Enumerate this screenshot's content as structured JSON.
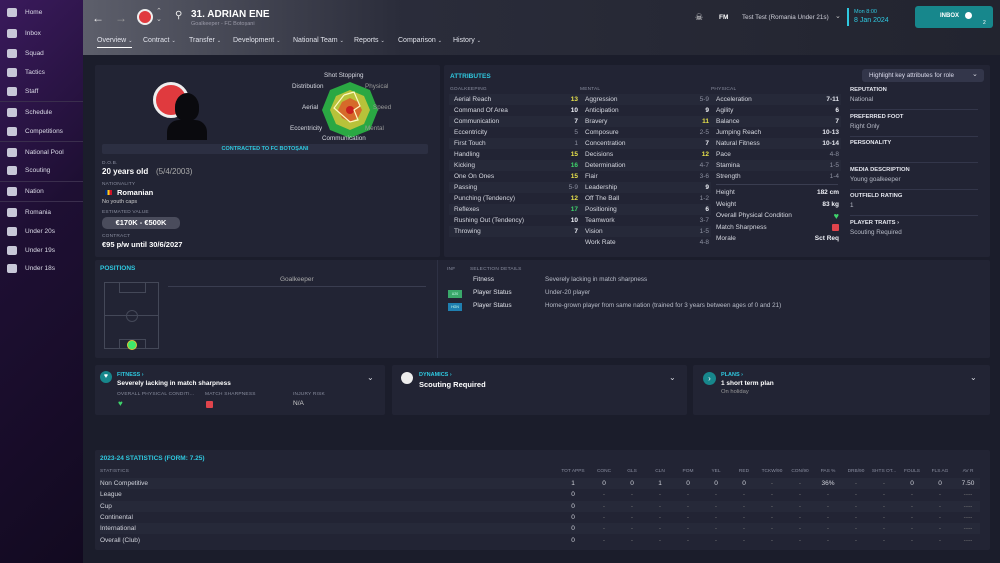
{
  "sidebar": {
    "items": [
      {
        "label": "Home",
        "icon": "home-icon"
      },
      {
        "label": "Inbox",
        "icon": "inbox-icon"
      },
      {
        "label": "Squad",
        "icon": "shirt-icon"
      },
      {
        "label": "Tactics",
        "icon": "tactics-icon"
      },
      {
        "label": "Staff",
        "icon": "staff-icon"
      },
      {
        "label": "Schedule",
        "icon": "calendar-icon"
      },
      {
        "label": "Competitions",
        "icon": "trophy-icon"
      },
      {
        "label": "National Pool",
        "icon": "list-icon"
      },
      {
        "label": "Scouting",
        "icon": "search-icon"
      },
      {
        "label": "Nation",
        "icon": "shield-icon"
      },
      {
        "label": "Romania",
        "icon": "team-icon"
      },
      {
        "label": "Under 20s",
        "icon": "team-icon"
      },
      {
        "label": "Under 19s",
        "icon": "team-icon"
      },
      {
        "label": "Under 18s",
        "icon": "team-icon"
      }
    ]
  },
  "header": {
    "title": "31. ADRIAN ENE",
    "subtitle": "Goalkeeper - FC Botoșani",
    "fm": "FM",
    "manager": "Test Test (Romania Under 21s)",
    "day_time": "Mon 8:00",
    "date": "8 Jan 2024",
    "inbox": "INBOX",
    "inbox_count": "2",
    "tabs": [
      "Overview",
      "Contract",
      "Transfer",
      "Development",
      "National Team",
      "Reports",
      "Comparison",
      "History"
    ]
  },
  "profile": {
    "radar_labels": [
      "Shot Stopping",
      "Physical",
      "Speed",
      "Mental",
      "Communication",
      "Eccentricity",
      "Aerial",
      "Distribution"
    ],
    "contract_banner": "CONTRACTED TO FC BOTOȘANI",
    "dob_label": "D.O.B.",
    "age": "20 years old",
    "dob": "(5/4/2003)",
    "nationality_label": "NATIONALITY",
    "nationality": "Romanian",
    "youth_caps": "No youth caps",
    "value_label": "ESTIMATED VALUE",
    "value": "€170K - €500K",
    "contract_label": "CONTRACT",
    "contract": "€95 p/w until 30/6/2027"
  },
  "attributes": {
    "title": "ATTRIBUTES",
    "highlight_button": "Highlight key attributes for role",
    "goalkeeping_label": "GOALKEEPING",
    "mental_label": "MENTAL",
    "physical_label": "PHYSICAL",
    "goalkeeping": [
      [
        "Aerial Reach",
        "13"
      ],
      [
        "Command Of Area",
        "10"
      ],
      [
        "Communication",
        "7"
      ],
      [
        "Eccentricity",
        "5"
      ],
      [
        "First Touch",
        "1"
      ],
      [
        "Handling",
        "15"
      ],
      [
        "Kicking",
        "16"
      ],
      [
        "One On Ones",
        "15"
      ],
      [
        "Passing",
        "5-9"
      ],
      [
        "Punching (Tendency)",
        "12"
      ],
      [
        "Reflexes",
        "17"
      ],
      [
        "Rushing Out (Tendency)",
        "10"
      ],
      [
        "Throwing",
        "7"
      ]
    ],
    "mental": [
      [
        "Aggression",
        "5-9"
      ],
      [
        "Anticipation",
        "9"
      ],
      [
        "Bravery",
        "11"
      ],
      [
        "Composure",
        "2-5"
      ],
      [
        "Concentration",
        "7"
      ],
      [
        "Decisions",
        "12"
      ],
      [
        "Determination",
        "4-7"
      ],
      [
        "Flair",
        "3-6"
      ],
      [
        "Leadership",
        "9"
      ],
      [
        "Off The Ball",
        "1-2"
      ],
      [
        "Positioning",
        "6"
      ],
      [
        "Teamwork",
        "3-7"
      ],
      [
        "Vision",
        "1-5"
      ],
      [
        "Work Rate",
        "4-8"
      ]
    ],
    "physical": [
      [
        "Acceleration",
        "7-11"
      ],
      [
        "Agility",
        "6"
      ],
      [
        "Balance",
        "7"
      ],
      [
        "Jumping Reach",
        "10-13"
      ],
      [
        "Natural Fitness",
        "10-14"
      ],
      [
        "Pace",
        "4-8"
      ],
      [
        "Stamina",
        "1-5"
      ],
      [
        "Strength",
        "1-4"
      ]
    ],
    "extra": [
      [
        "Height",
        "182 cm"
      ],
      [
        "Weight",
        "83 kg"
      ],
      [
        "Overall Physical Condition",
        ""
      ],
      [
        "Match Sharpness",
        ""
      ],
      [
        "Morale",
        "Sct Req"
      ]
    ]
  },
  "info": [
    {
      "label": "REPUTATION",
      "value": "National"
    },
    {
      "label": "PREFERRED FOOT",
      "value": "Right Only"
    },
    {
      "label": "PERSONALITY",
      "value": ""
    },
    {
      "label": "MEDIA DESCRIPTION",
      "value": "Young goalkeeper"
    },
    {
      "label": "OUTFIELD RATING",
      "value": "1"
    },
    {
      "label": "PLAYER TRAITS ›",
      "value": "Scouting Required"
    }
  ],
  "positions": {
    "title": "POSITIONS",
    "position": "Goalkeeper"
  },
  "selection": {
    "inf_label": "INF",
    "details_label": "SELECTION DETAILS",
    "rows": [
      {
        "badge": "",
        "type": "Fitness",
        "text": "Severely lacking in match sharpness"
      },
      {
        "badge": "U20",
        "type": "Player Status",
        "text": "Under-20 player"
      },
      {
        "badge": "HGN",
        "type": "Player Status",
        "text": "Home-grown player from same nation (trained for 3 years between ages of 0 and 21)"
      }
    ]
  },
  "fitness": {
    "title": "FITNESS ›",
    "summary": "Severely lacking in match sharpness",
    "cond_label": "OVERALL PHYSICAL CONDITI...",
    "sharp_label": "MATCH SHARPNESS",
    "injury_label": "INJURY RISK",
    "injury": "N/A"
  },
  "dynamics": {
    "title": "DYNAMICS ›",
    "summary": "Scouting Required"
  },
  "plans": {
    "title": "PLANS ›",
    "summary": "1 short term plan",
    "sub": "On holiday"
  },
  "stats": {
    "title": "2023-24 STATISTICS (FORM: 7.25)",
    "label": "STATISTICS",
    "columns": [
      "TOT APPS",
      "CONC",
      "GLS",
      "CLN",
      "POM",
      "YEL",
      "RED",
      "TCKW/90",
      "CON/90",
      "PAS %",
      "DRB/90",
      "SHTS OT...",
      "FOULS",
      "FLS AG",
      "AV R"
    ],
    "rows": [
      {
        "name": "Non Competitive",
        "values": [
          "1",
          "0",
          "0",
          "1",
          "0",
          "0",
          "0",
          "-",
          "-",
          "36%",
          "-",
          "-",
          "0",
          "0",
          "7.50"
        ]
      },
      {
        "name": "League",
        "values": [
          "0",
          "-",
          "-",
          "-",
          "-",
          "-",
          "-",
          "-",
          "-",
          "-",
          "-",
          "-",
          "-",
          "-",
          "----"
        ]
      },
      {
        "name": "Cup",
        "values": [
          "0",
          "-",
          "-",
          "-",
          "-",
          "-",
          "-",
          "-",
          "-",
          "-",
          "-",
          "-",
          "-",
          "-",
          "----"
        ]
      },
      {
        "name": "Continental",
        "values": [
          "0",
          "-",
          "-",
          "-",
          "-",
          "-",
          "-",
          "-",
          "-",
          "-",
          "-",
          "-",
          "-",
          "-",
          "----"
        ]
      },
      {
        "name": "International",
        "values": [
          "0",
          "-",
          "-",
          "-",
          "-",
          "-",
          "-",
          "-",
          "-",
          "-",
          "-",
          "-",
          "-",
          "-",
          "----"
        ]
      },
      {
        "name": "Overall (Club)",
        "values": [
          "0",
          "-",
          "-",
          "-",
          "-",
          "-",
          "-",
          "-",
          "-",
          "-",
          "-",
          "-",
          "-",
          "-",
          "----"
        ]
      }
    ]
  },
  "colors": {
    "accent": "#2fc9e0",
    "inbox": "#17878c",
    "good": "#3ed46b",
    "high": "#e6e04a",
    "bad": "#e0444c"
  }
}
